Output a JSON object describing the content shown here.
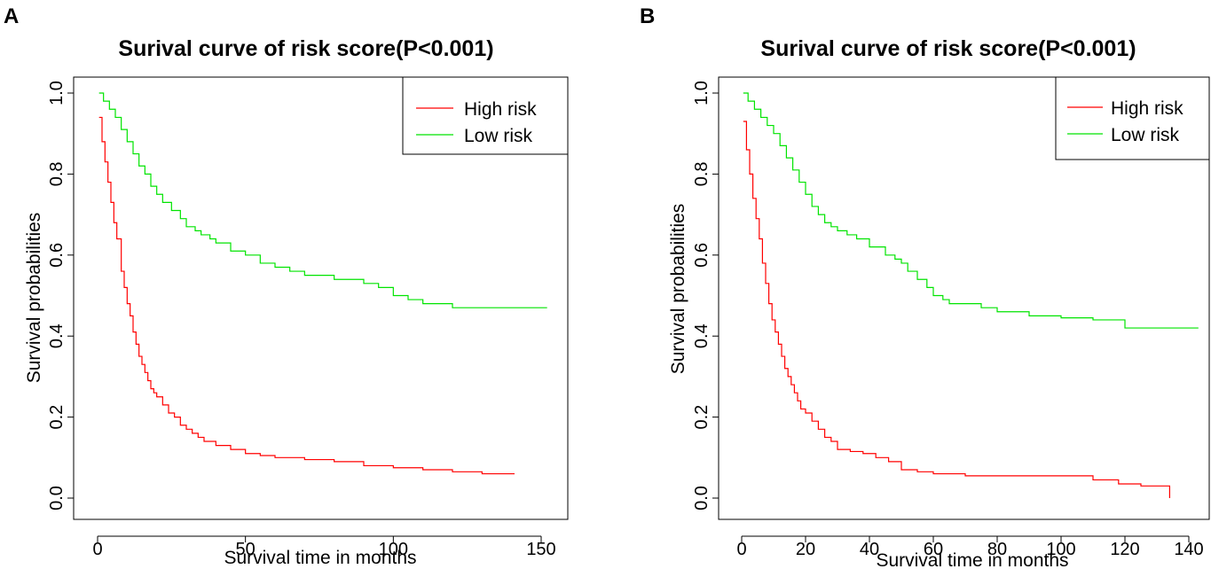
{
  "chart_data": [
    {
      "panel": "A",
      "type": "line",
      "subtype": "kaplan-meier-step",
      "title": "Surival curve of risk score(P<0.001)",
      "xlabel": "Survival time in months",
      "ylabel": "Survival probabilities",
      "xlim": [
        0,
        150
      ],
      "ylim": [
        0,
        1
      ],
      "xticks": [
        0,
        50,
        100,
        150
      ],
      "yticks": [
        0.0,
        0.2,
        0.4,
        0.6,
        0.8,
        1.0
      ],
      "ytick_labels": [
        "0.0",
        "0.2",
        "0.4",
        "0.6",
        "0.8",
        "1.0"
      ],
      "legend": "top-right",
      "series": [
        {
          "name": "High risk",
          "color": "#ff0000",
          "x": [
            0.5,
            1.5,
            2.5,
            3.5,
            4.5,
            5.5,
            6.5,
            8,
            9,
            10,
            11,
            12,
            13,
            14,
            15,
            16,
            17,
            18,
            19,
            20,
            22,
            24,
            26,
            28,
            30,
            32,
            34,
            36,
            40,
            45,
            50,
            55,
            60,
            70,
            80,
            90,
            100,
            110,
            120,
            130,
            141
          ],
          "y": [
            0.94,
            0.88,
            0.83,
            0.78,
            0.73,
            0.68,
            0.64,
            0.56,
            0.52,
            0.48,
            0.45,
            0.41,
            0.38,
            0.35,
            0.33,
            0.31,
            0.29,
            0.27,
            0.26,
            0.25,
            0.23,
            0.21,
            0.2,
            0.18,
            0.17,
            0.16,
            0.15,
            0.14,
            0.13,
            0.12,
            0.11,
            0.105,
            0.1,
            0.095,
            0.09,
            0.08,
            0.075,
            0.07,
            0.065,
            0.06,
            0.06
          ]
        },
        {
          "name": "Low risk",
          "color": "#00e400",
          "x": [
            0.5,
            2,
            4,
            6,
            8,
            10,
            12,
            14,
            16,
            18,
            20,
            22,
            25,
            28,
            30,
            33,
            35,
            38,
            40,
            45,
            50,
            55,
            60,
            65,
            70,
            80,
            90,
            95,
            100,
            105,
            110,
            115,
            120,
            130,
            152
          ],
          "y": [
            1.0,
            0.98,
            0.96,
            0.94,
            0.91,
            0.88,
            0.85,
            0.82,
            0.8,
            0.77,
            0.75,
            0.73,
            0.71,
            0.69,
            0.67,
            0.66,
            0.65,
            0.64,
            0.63,
            0.61,
            0.6,
            0.58,
            0.57,
            0.56,
            0.55,
            0.54,
            0.53,
            0.52,
            0.5,
            0.49,
            0.48,
            0.48,
            0.47,
            0.47,
            0.47
          ]
        }
      ]
    },
    {
      "panel": "B",
      "type": "line",
      "subtype": "kaplan-meier-step",
      "title": "Surival curve of risk score(P<0.001)",
      "xlabel": "Survival time in months",
      "ylabel": "Survival probabilities",
      "xlim": [
        0,
        140
      ],
      "ylim": [
        0,
        1
      ],
      "xticks": [
        0,
        20,
        40,
        60,
        80,
        100,
        120,
        140
      ],
      "yticks": [
        0.0,
        0.2,
        0.4,
        0.6,
        0.8,
        1.0
      ],
      "ytick_labels": [
        "0.0",
        "0.2",
        "0.4",
        "0.6",
        "0.8",
        "1.0"
      ],
      "legend": "top-right",
      "series": [
        {
          "name": "High risk",
          "color": "#ff0000",
          "x": [
            0.5,
            1.5,
            2.5,
            3.5,
            4.5,
            5.5,
            6.5,
            7.5,
            8.5,
            9.5,
            10.5,
            11.5,
            12.5,
            13.5,
            14.5,
            15.5,
            16.5,
            17.5,
            18.5,
            20,
            22,
            24,
            26,
            28,
            30,
            34,
            38,
            42,
            46,
            50,
            55,
            60,
            70,
            80,
            90,
            100,
            110,
            118,
            125,
            134
          ],
          "y": [
            0.93,
            0.86,
            0.8,
            0.74,
            0.69,
            0.64,
            0.58,
            0.53,
            0.48,
            0.44,
            0.41,
            0.38,
            0.35,
            0.32,
            0.3,
            0.28,
            0.26,
            0.24,
            0.22,
            0.21,
            0.19,
            0.17,
            0.15,
            0.14,
            0.12,
            0.115,
            0.11,
            0.1,
            0.09,
            0.07,
            0.065,
            0.06,
            0.055,
            0.055,
            0.055,
            0.055,
            0.045,
            0.035,
            0.03,
            0.0
          ]
        },
        {
          "name": "Low risk",
          "color": "#00e400",
          "x": [
            0.5,
            2,
            4,
            6,
            8,
            10,
            12,
            14,
            16,
            18,
            20,
            22,
            24,
            26,
            28,
            30,
            33,
            36,
            40,
            45,
            48,
            50,
            52,
            55,
            58,
            60,
            63,
            65,
            70,
            75,
            80,
            90,
            100,
            110,
            120,
            143
          ],
          "y": [
            1.0,
            0.98,
            0.96,
            0.94,
            0.92,
            0.9,
            0.87,
            0.84,
            0.81,
            0.78,
            0.75,
            0.72,
            0.7,
            0.68,
            0.67,
            0.66,
            0.65,
            0.64,
            0.62,
            0.6,
            0.59,
            0.58,
            0.56,
            0.54,
            0.52,
            0.5,
            0.49,
            0.48,
            0.48,
            0.47,
            0.46,
            0.45,
            0.445,
            0.44,
            0.42,
            0.42
          ]
        }
      ]
    }
  ]
}
